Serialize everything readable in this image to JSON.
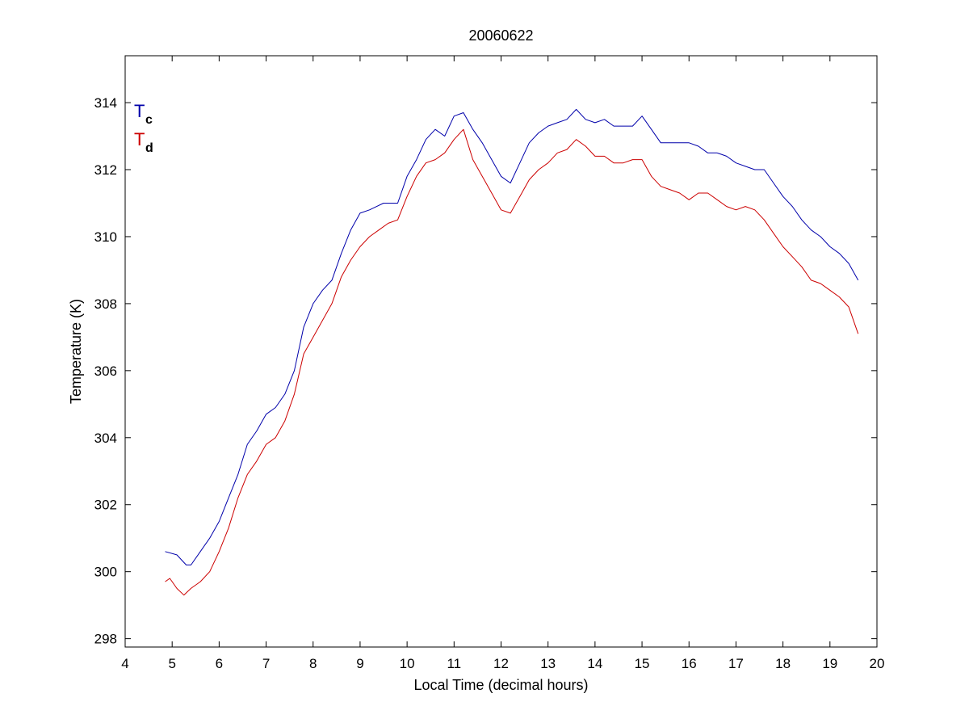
{
  "chart_data": {
    "type": "line",
    "title": "20060622",
    "xlabel": "Local Time (decimal hours)",
    "ylabel": "Temperature (K)",
    "xlim": [
      4,
      20
    ],
    "ylim": [
      297.75,
      315.4
    ],
    "xticks": [
      4,
      5,
      6,
      7,
      8,
      9,
      10,
      11,
      12,
      13,
      14,
      15,
      16,
      17,
      18,
      19,
      20
    ],
    "yticks": [
      298,
      300,
      302,
      304,
      306,
      308,
      310,
      312,
      314
    ],
    "grid": false,
    "legend_position": "top-left",
    "series": [
      {
        "name": "T",
        "subscript": "c",
        "color": "#0000aa",
        "x": [
          4.85,
          5.1,
          5.3,
          5.4,
          5.6,
          5.8,
          6.0,
          6.2,
          6.4,
          6.6,
          6.8,
          7.0,
          7.2,
          7.4,
          7.6,
          7.8,
          8.0,
          8.2,
          8.4,
          8.6,
          8.8,
          9.0,
          9.2,
          9.5,
          9.8,
          10.0,
          10.2,
          10.4,
          10.6,
          10.8,
          11.0,
          11.2,
          11.4,
          11.6,
          11.8,
          12.0,
          12.2,
          12.4,
          12.6,
          12.8,
          13.0,
          13.2,
          13.4,
          13.6,
          13.8,
          14.0,
          14.2,
          14.4,
          14.6,
          14.8,
          15.0,
          15.2,
          15.4,
          15.6,
          15.8,
          16.0,
          16.2,
          16.4,
          16.6,
          16.8,
          17.0,
          17.2,
          17.4,
          17.6,
          17.8,
          18.0,
          18.2,
          18.4,
          18.6,
          18.8,
          19.0,
          19.2,
          19.4,
          19.6
        ],
        "y": [
          300.6,
          300.5,
          300.2,
          300.2,
          300.6,
          301.0,
          301.5,
          302.2,
          302.9,
          303.8,
          304.2,
          304.7,
          304.9,
          305.3,
          306.0,
          307.3,
          308.0,
          308.4,
          308.7,
          309.5,
          310.2,
          310.7,
          310.8,
          311.0,
          311.0,
          311.8,
          312.3,
          312.9,
          313.2,
          313.0,
          313.6,
          313.7,
          313.2,
          312.8,
          312.3,
          311.8,
          311.6,
          312.2,
          312.8,
          313.1,
          313.3,
          313.4,
          313.5,
          313.8,
          313.5,
          313.4,
          313.5,
          313.3,
          313.3,
          313.3,
          313.6,
          313.2,
          312.8,
          312.8,
          312.8,
          312.8,
          312.7,
          312.5,
          312.5,
          312.4,
          312.2,
          312.1,
          312.0,
          312.0,
          311.6,
          311.2,
          310.9,
          310.5,
          310.2,
          310.0,
          309.7,
          309.5,
          309.2,
          308.7
        ]
      },
      {
        "name": "T",
        "subscript": "d",
        "color": "#cc0000",
        "x": [
          4.85,
          4.95,
          5.1,
          5.25,
          5.4,
          5.6,
          5.8,
          6.0,
          6.2,
          6.4,
          6.6,
          6.8,
          7.0,
          7.2,
          7.4,
          7.6,
          7.8,
          8.0,
          8.2,
          8.4,
          8.6,
          8.8,
          9.0,
          9.2,
          9.4,
          9.6,
          9.8,
          10.0,
          10.2,
          10.4,
          10.6,
          10.8,
          11.0,
          11.2,
          11.4,
          11.6,
          11.8,
          12.0,
          12.2,
          12.4,
          12.6,
          12.8,
          13.0,
          13.2,
          13.4,
          13.6,
          13.8,
          14.0,
          14.2,
          14.4,
          14.6,
          14.8,
          15.0,
          15.2,
          15.4,
          15.6,
          15.8,
          16.0,
          16.2,
          16.4,
          16.6,
          16.8,
          17.0,
          17.2,
          17.4,
          17.6,
          17.8,
          18.0,
          18.2,
          18.4,
          18.6,
          18.8,
          19.0,
          19.2,
          19.4,
          19.6
        ],
        "y": [
          299.7,
          299.8,
          299.5,
          299.3,
          299.5,
          299.7,
          300.0,
          300.6,
          301.3,
          302.2,
          302.9,
          303.3,
          303.8,
          304.0,
          304.5,
          305.3,
          306.5,
          307.0,
          307.5,
          308.0,
          308.8,
          309.3,
          309.7,
          310.0,
          310.2,
          310.4,
          310.5,
          311.2,
          311.8,
          312.2,
          312.3,
          312.5,
          312.9,
          313.2,
          312.3,
          311.8,
          311.3,
          310.8,
          310.7,
          311.2,
          311.7,
          312.0,
          312.2,
          312.5,
          312.6,
          312.9,
          312.7,
          312.4,
          312.4,
          312.2,
          312.2,
          312.3,
          312.3,
          311.8,
          311.5,
          311.4,
          311.3,
          311.1,
          311.3,
          311.3,
          311.1,
          310.9,
          310.8,
          310.9,
          310.8,
          310.5,
          310.1,
          309.7,
          309.4,
          309.1,
          308.7,
          308.6,
          308.4,
          308.2,
          307.9,
          307.1
        ]
      }
    ]
  }
}
